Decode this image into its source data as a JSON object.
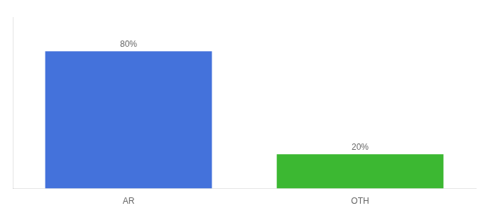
{
  "chart_data": {
    "type": "bar",
    "categories": [
      "AR",
      "OTH"
    ],
    "values": [
      80,
      20
    ],
    "value_labels": [
      "80%",
      "20%"
    ],
    "data_labels": true,
    "colors": [
      "#4472db",
      "#3cb832"
    ],
    "ylim": [
      0,
      100
    ],
    "tick_labels": "x",
    "grid": false
  }
}
